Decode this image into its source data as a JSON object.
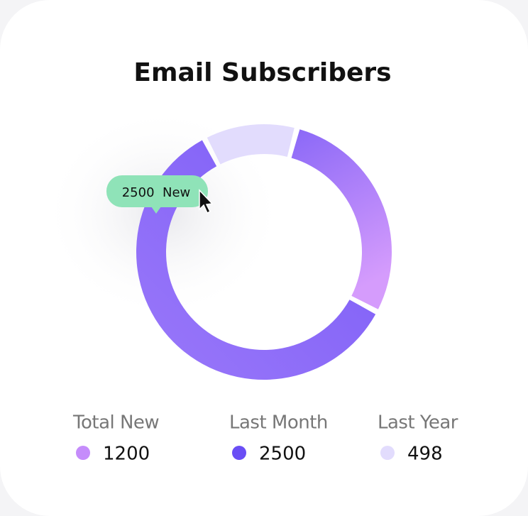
{
  "chart_data": {
    "type": "donut",
    "title": "Email Subscribers",
    "categories": [
      "Total New",
      "Last Month",
      "Last Year"
    ],
    "values": [
      1200,
      2500,
      498
    ],
    "colors": [
      "#c58cfb",
      "#6a4ef5",
      "#e2dcfd"
    ],
    "tooltip": "2500  New"
  }
}
